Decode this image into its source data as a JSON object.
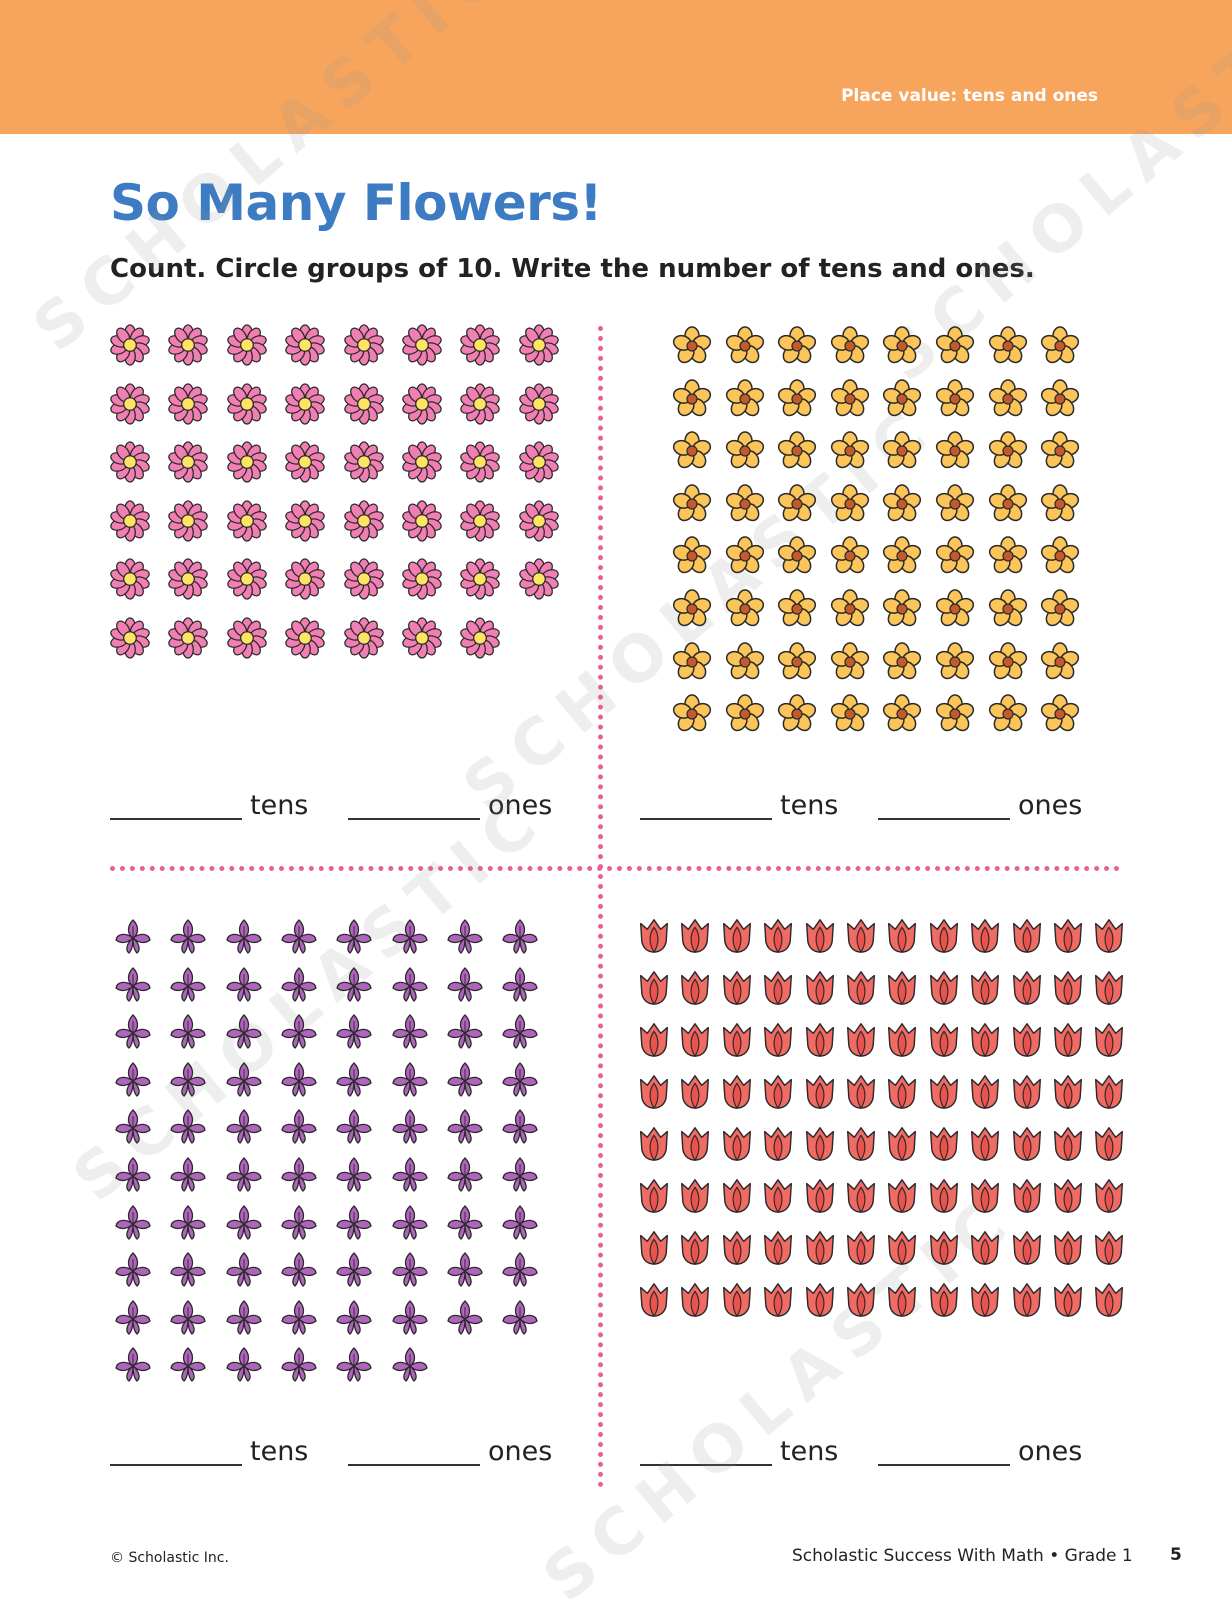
{
  "header": {
    "topic": "Place value: tens and ones",
    "band_color": "#f7a55c"
  },
  "title": "So Many Flowers!",
  "instructions": "Count. Circle groups of 10. Write the number of tens and ones.",
  "panels": [
    {
      "flower": "pink-daisy",
      "rows": 6,
      "cols": 8,
      "count": 47,
      "tens_label": "tens",
      "ones_label": "ones"
    },
    {
      "flower": "yellow-flower",
      "rows": 8,
      "cols": 8,
      "count": 64,
      "tens_label": "tens",
      "ones_label": "ones"
    },
    {
      "flower": "purple-iris",
      "rows": 10,
      "cols": 8,
      "count": 78,
      "tens_label": "tens",
      "ones_label": "ones"
    },
    {
      "flower": "red-tulip",
      "rows": 8,
      "cols": 12,
      "count": 96,
      "tens_label": "tens",
      "ones_label": "ones"
    }
  ],
  "colors": {
    "title": "#3d7cc3",
    "divider": "#ea5f98",
    "pink_petal": "#f17fb3",
    "yellow_petal": "#fbc55a",
    "purple_petal": "#b065bd",
    "red_petal": "#ef6b64"
  },
  "footer": {
    "copyright": "© Scholastic Inc.",
    "series": "Scholastic Success With Math • Grade 1",
    "page_number": "5"
  },
  "watermark": "SCHOLASTIC"
}
